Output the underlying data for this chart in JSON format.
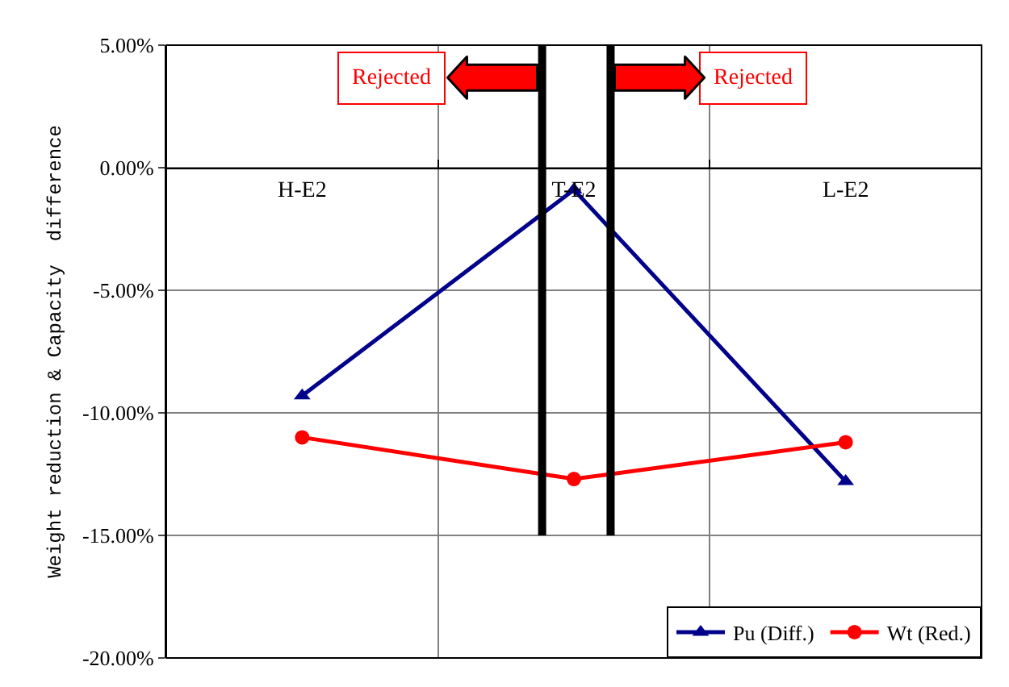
{
  "chart_data": {
    "type": "line",
    "ylabel": "Weight reduction & Capacity  difference",
    "categories": [
      "H-E2",
      "T-E2",
      "L-E2"
    ],
    "series": [
      {
        "name": "Pu (Diff.)",
        "color": "#00008b",
        "marker": "triangle",
        "values": [
          -9.3,
          -0.9,
          -12.8
        ]
      },
      {
        "name": "Wt (Red.)",
        "color": "#ff0000",
        "marker": "circle",
        "values": [
          -11.0,
          -12.7,
          -11.2
        ]
      }
    ],
    "ylim": [
      -20,
      5
    ],
    "yticks": [
      {
        "value": 5,
        "label": "5.00%"
      },
      {
        "value": 0,
        "label": "0.00%"
      },
      {
        "value": -5,
        "label": "-5.00%"
      },
      {
        "value": -10,
        "label": "-10.00%"
      },
      {
        "value": -15,
        "label": "-15.00%"
      },
      {
        "value": -20,
        "label": "-20.00%"
      }
    ],
    "annotations": [
      "Rejected",
      "Rejected"
    ],
    "grid": true,
    "legend": "bottom right",
    "line_style": "solid"
  }
}
